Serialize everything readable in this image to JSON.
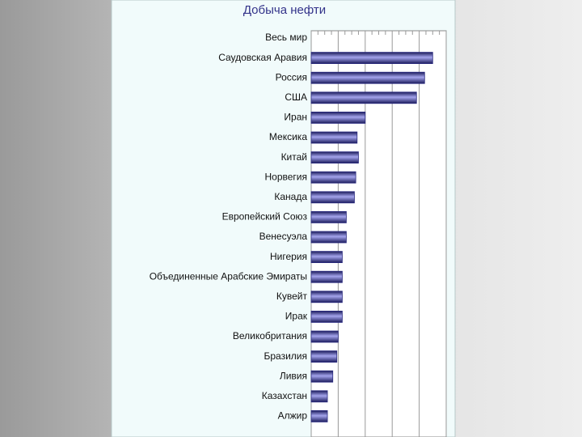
{
  "chart_data": {
    "type": "bar",
    "orientation": "horizontal",
    "title": "Добыча нефти",
    "categories": [
      "Весь мир",
      "Саудовская Аравия",
      "Россия",
      "США",
      "Иран",
      "Мексика",
      "Китай",
      "Норвегия",
      "Канада",
      "Европейский Союз",
      "Венесуэла",
      "Нигерия",
      "Объединенные Арабские Эмираты",
      "Кувейт",
      "Ирак",
      "Великобритания",
      "Бразилия",
      "Ливия",
      "Казахстан",
      "Алжир"
    ],
    "values": [
      null,
      9.0,
      8.4,
      7.8,
      4.0,
      3.4,
      3.5,
      3.3,
      3.2,
      2.6,
      2.6,
      2.3,
      2.3,
      2.3,
      2.3,
      2.0,
      1.9,
      1.6,
      1.2,
      1.2
    ],
    "color": "#2a2a80",
    "xlim": [
      0,
      10
    ],
    "xticks": [
      0,
      2,
      4,
      6,
      8,
      10
    ],
    "grid": true
  }
}
